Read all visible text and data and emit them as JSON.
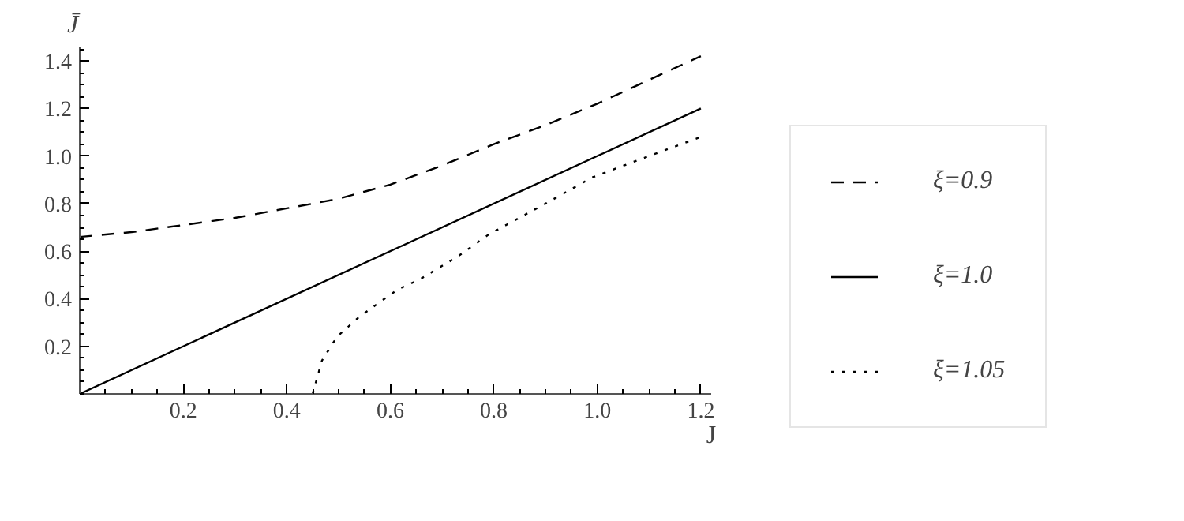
{
  "chart_data": {
    "type": "line",
    "xlabel": "J",
    "ylabel": "J̄",
    "xlim": [
      0,
      1.22
    ],
    "ylim": [
      0,
      1.46
    ],
    "xticks": [
      0.2,
      0.4,
      0.6,
      0.8,
      {
        "value": 1,
        "label": "1.0"
      },
      1.2
    ],
    "yticks": [
      0.2,
      0.4,
      0.6,
      0.8,
      {
        "value": 1,
        "label": "1.0"
      },
      1.2,
      1.4
    ],
    "grid": false,
    "legend": "right",
    "marker": "none",
    "series": [
      {
        "name": "ξ=0.9",
        "color": "#000000",
        "line_style": "dashed",
        "x": [
          0,
          0.1,
          0.2,
          0.3,
          0.4,
          0.5,
          0.6,
          0.7,
          0.8,
          0.9,
          1.0,
          1.1,
          1.2
        ],
        "values": [
          0.66,
          0.68,
          0.71,
          0.74,
          0.78,
          0.82,
          0.88,
          0.96,
          1.05,
          1.13,
          1.22,
          1.32,
          1.42
        ]
      },
      {
        "name": "ξ=1.0",
        "color": "#000000",
        "line_style": "solid",
        "x": [
          0,
          1.2
        ],
        "values": [
          0,
          1.2
        ]
      },
      {
        "name": "ξ=1.05",
        "color": "#000000",
        "line_style": "dotted",
        "x": [
          0.45,
          0.468,
          0.497,
          0.538,
          0.576,
          0.615,
          0.656,
          0.694,
          0.732,
          0.79,
          0.9,
          0.99,
          1.1,
          1.2
        ],
        "values": [
          0,
          0.14,
          0.24,
          0.32,
          0.38,
          0.44,
          0.48,
          0.53,
          0.58,
          0.67,
          0.8,
          0.91,
          1.0,
          1.08
        ]
      }
    ]
  }
}
